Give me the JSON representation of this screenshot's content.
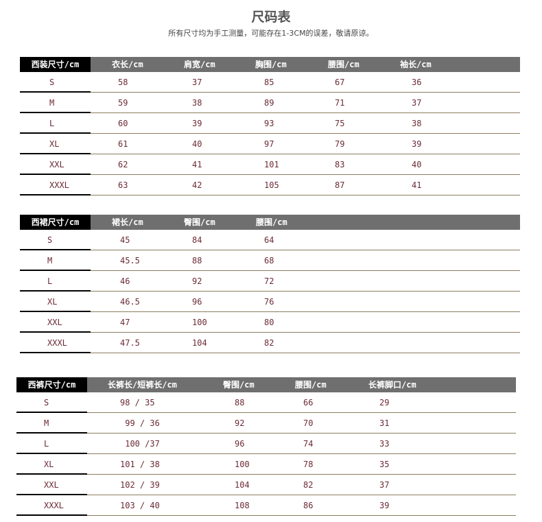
{
  "title": "尺码表",
  "subtitle": "所有尺寸均为手工测量，可能存在1-3CM的误差，敬请原谅。",
  "colors": {
    "header_bg": "#6f6f6f",
    "size_header_bg": "#000000",
    "value_text": "#6b2a35",
    "row_line": "#8b7b5e"
  },
  "tables": [
    {
      "name": "suit",
      "headers": [
        "西装尺寸/cm",
        "衣长/cm",
        "肩宽/cm",
        "胸围/cm",
        "腰围/cm",
        "袖长/cm"
      ],
      "rows": [
        [
          "S",
          "58",
          "37",
          "85",
          "67",
          "36"
        ],
        [
          "M",
          "59",
          "38",
          "89",
          "71",
          "37"
        ],
        [
          "L",
          "60",
          "39",
          "93",
          "75",
          "38"
        ],
        [
          "XL",
          "61",
          "40",
          "97",
          "79",
          "39"
        ],
        [
          "XXL",
          "62",
          "41",
          "101",
          "83",
          "40"
        ],
        [
          "XXXL",
          "63",
          "42",
          "105",
          "87",
          "41"
        ]
      ]
    },
    {
      "name": "skirt",
      "headers": [
        "西裙尺寸/cm",
        "裙长/cm",
        "臀围/cm",
        "腰围/cm"
      ],
      "rows": [
        [
          "S",
          "45",
          "84",
          "64"
        ],
        [
          "M",
          "45.5",
          "88",
          "68"
        ],
        [
          "L",
          "46",
          "92",
          "72"
        ],
        [
          "XL",
          "46.5",
          "96",
          "76"
        ],
        [
          "XXL",
          "47",
          "100",
          "80"
        ],
        [
          "XXXL",
          "47.5",
          "104",
          "82"
        ]
      ]
    },
    {
      "name": "pants",
      "headers": [
        "西裤尺寸/cm",
        "长裤长/短裤长/cm",
        "臀围/cm",
        "腰围/cm",
        "长裤脚口/cm"
      ],
      "rows": [
        [
          "S",
          "98 / 35",
          "88",
          "66",
          "29"
        ],
        [
          "M",
          " 99 / 36",
          "92",
          "70",
          "31"
        ],
        [
          "L",
          " 100 /37",
          "96",
          "74",
          "33"
        ],
        [
          "XL",
          "101 / 38",
          "100",
          "78",
          "35"
        ],
        [
          "XXL",
          "102 / 39",
          "104",
          "82",
          "37"
        ],
        [
          "XXXL",
          "103 / 40",
          "108",
          "86",
          "39"
        ]
      ]
    }
  ]
}
